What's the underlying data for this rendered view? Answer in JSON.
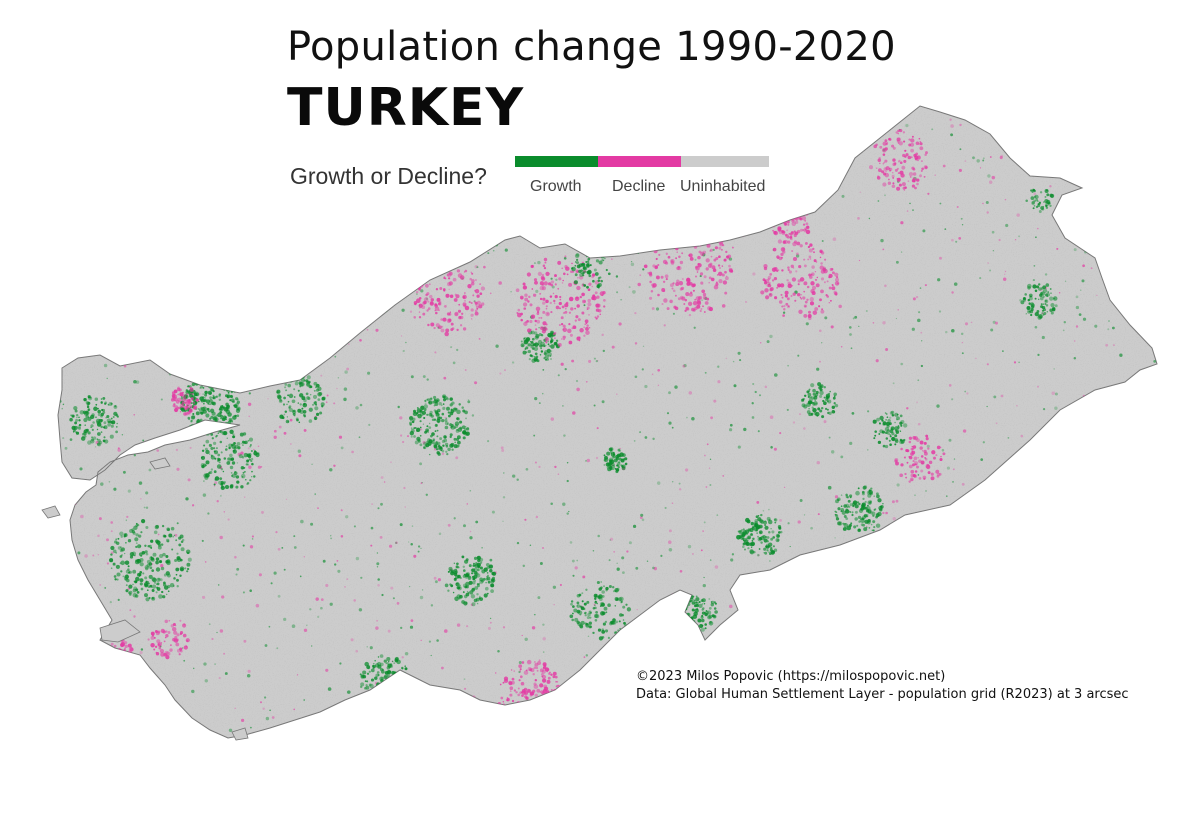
{
  "header": {
    "subtitle": "Population change 1990-2020",
    "title": "TURKEY"
  },
  "legend": {
    "question": "Growth or Decline?",
    "items": [
      {
        "label": "Growth",
        "color": "#0a8c2c"
      },
      {
        "label": "Decline",
        "color": "#e33aa3"
      },
      {
        "label": "Uninhabited",
        "color": "#cccccc"
      }
    ]
  },
  "credits": {
    "line1": "©2023 Milos Popovic (https://milospopovic.net)",
    "line2": "Data: Global Human Settlement Layer - population grid (R2023) at 3 arcsec"
  },
  "colors": {
    "land": "#cccccc",
    "border": "#777777",
    "growth": "#0a8c2c",
    "decline": "#e33aa3"
  }
}
